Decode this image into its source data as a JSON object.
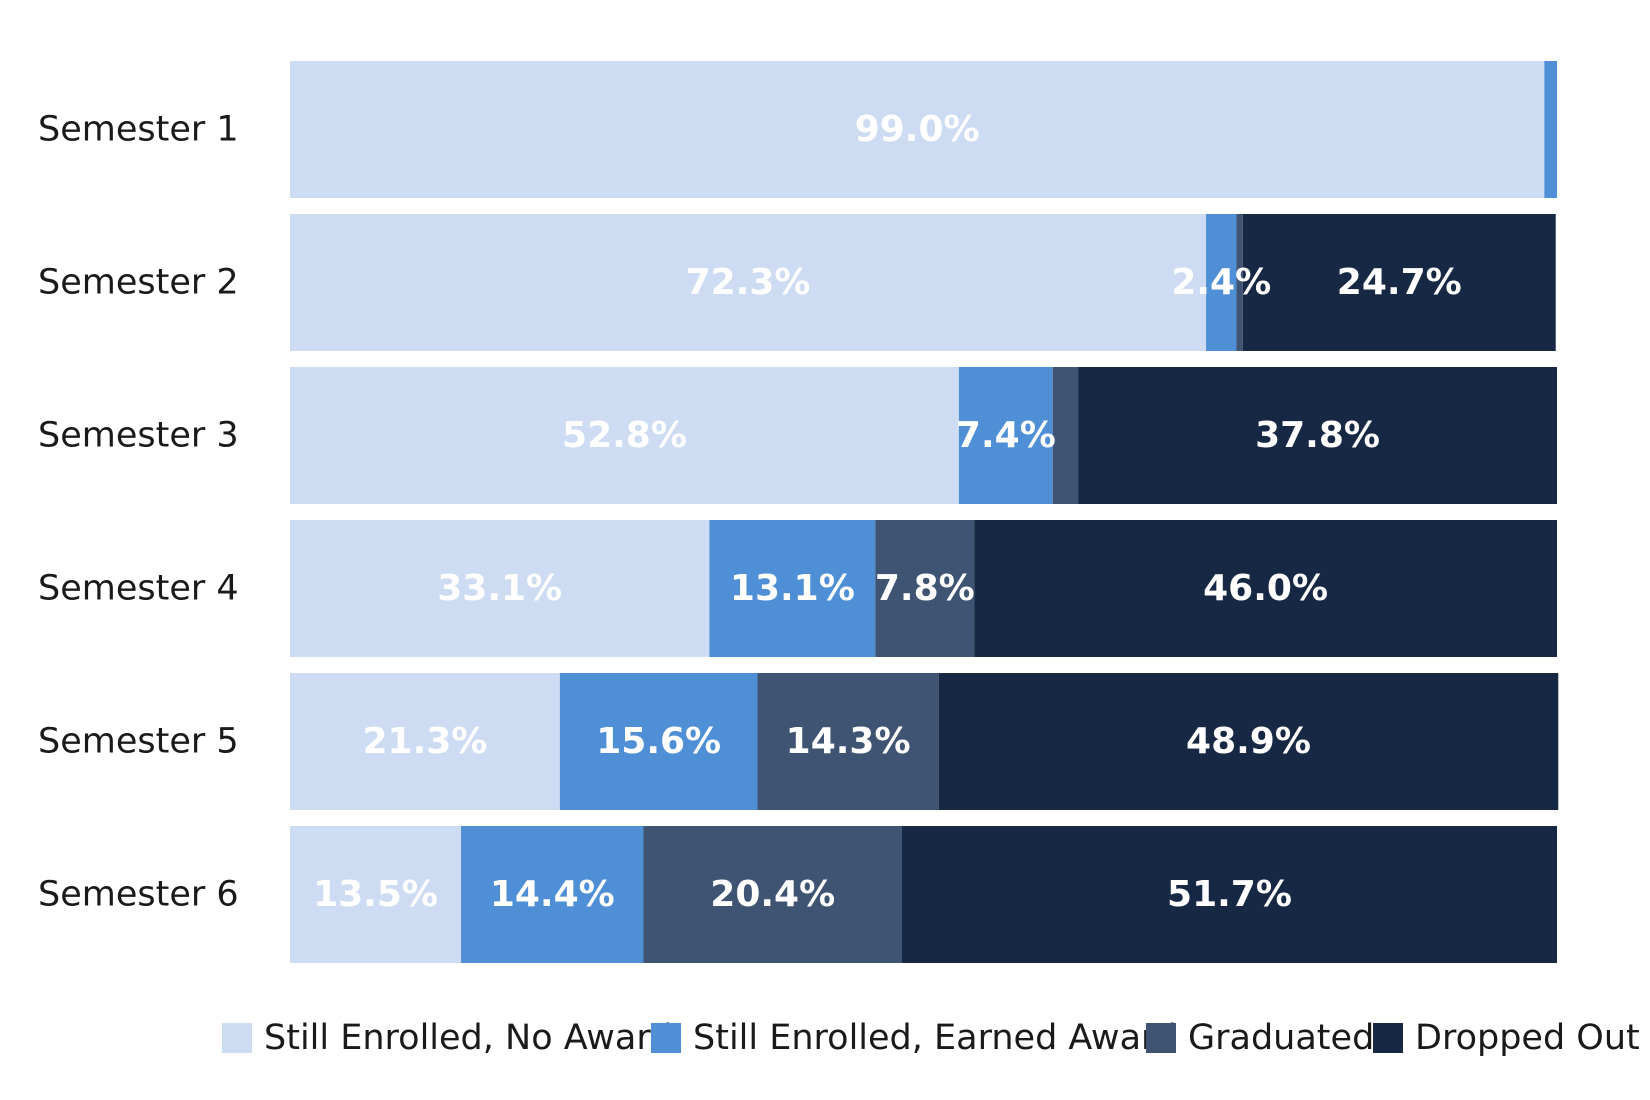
{
  "chart_data": {
    "type": "bar",
    "orientation": "horizontal",
    "stacked": true,
    "title": "",
    "xlabel": "",
    "ylabel": "",
    "xlim": [
      0,
      100
    ],
    "grid": false,
    "legend_position": "bottom",
    "categories": [
      "Semester 1",
      "Semester 2",
      "Semester 3",
      "Semester 4",
      "Semester 5",
      "Semester 6"
    ],
    "series": [
      {
        "name": "Still Enrolled, No Award",
        "color": "#cddcf3",
        "values": [
          99.0,
          72.3,
          52.8,
          33.1,
          21.3,
          13.5
        ],
        "labels": [
          "99.0%",
          "72.3%",
          "52.8%",
          "33.1%",
          "21.3%",
          "13.5%"
        ]
      },
      {
        "name": "Still Enrolled, Earned Award",
        "color": "#4f8fd5",
        "values": [
          1.0,
          2.4,
          7.4,
          13.1,
          15.6,
          14.4
        ],
        "labels": [
          "",
          "2.4%",
          "7.4%",
          "13.1%",
          "15.6%",
          "14.4%"
        ]
      },
      {
        "name": "Graduated",
        "color": "#3f5373",
        "values": [
          0,
          0.5,
          2.0,
          7.8,
          14.3,
          20.4
        ],
        "labels": [
          "",
          "",
          "",
          "7.8%",
          "14.3%",
          "20.4%"
        ]
      },
      {
        "name": "Dropped Out",
        "color": "#172844",
        "values": [
          0,
          24.7,
          37.8,
          46.0,
          48.9,
          51.7
        ],
        "labels": [
          "",
          "24.7%",
          "37.8%",
          "46.0%",
          "48.9%",
          "51.7%"
        ]
      }
    ]
  }
}
